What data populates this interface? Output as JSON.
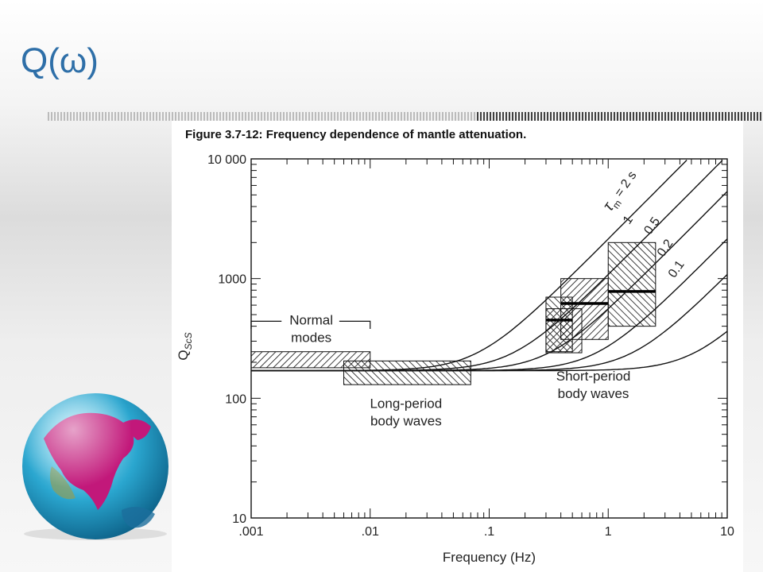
{
  "slide": {
    "title": "Q(ω)"
  },
  "figure": {
    "caption": "Figure 3.7-12: Frequency dependence of mantle attenuation."
  },
  "chart_data": {
    "type": "line",
    "title": "Figure 3.7-12: Frequency dependence of mantle attenuation.",
    "xlabel": "Frequency (Hz)",
    "ylabel": "Q_ScS",
    "xscale": "log",
    "yscale": "log",
    "xlim": [
      0.001,
      10
    ],
    "ylim": [
      10,
      10000
    ],
    "x_tick_labels": [
      ".001",
      ".01",
      ".1",
      "1",
      "10"
    ],
    "y_tick_labels": [
      "10",
      "100",
      "1000",
      "10 000"
    ],
    "grid": false,
    "Q0": 170,
    "series": [
      {
        "name": "τm = 2 s",
        "label_text": "= 2 s",
        "tau": 2.0
      },
      {
        "name": "1",
        "label_text": "1",
        "tau": 1.0
      },
      {
        "name": "0.5",
        "label_text": "0.5",
        "tau": 0.5
      },
      {
        "name": "0.2",
        "label_text": "0.2",
        "tau": 0.2
      },
      {
        "name": "0.1",
        "label_text": "0.1",
        "tau": 0.1
      }
    ],
    "ranges": [
      {
        "group": "Normal modes",
        "x": [
          0.001,
          0.01
        ],
        "y": [
          180,
          245
        ],
        "median": null,
        "hatch": "back"
      },
      {
        "group": "Long-period body waves",
        "x": [
          0.006,
          0.07
        ],
        "y": [
          130,
          205
        ],
        "median": null,
        "hatch": "fwd"
      },
      {
        "group": "Short-period body waves",
        "x": [
          0.3,
          0.5
        ],
        "y": [
          245,
          700
        ],
        "median": 450,
        "hatch": "fwd"
      },
      {
        "group": "Short-period body waves",
        "x": [
          0.3,
          0.6
        ],
        "y": [
          240,
          560
        ],
        "median": null,
        "hatch": "back"
      },
      {
        "group": "Short-period body waves",
        "x": [
          0.4,
          1.0
        ],
        "y": [
          310,
          1000
        ],
        "median": 620,
        "hatch": "back"
      },
      {
        "group": "Short-period body waves",
        "x": [
          1.0,
          2.5
        ],
        "y": [
          400,
          2000
        ],
        "median": 780,
        "hatch": "fwd"
      }
    ],
    "annotations": {
      "normal_modes_line1": "Normal",
      "normal_modes_line2": "modes",
      "long_period_line1": "Long-period",
      "long_period_line2": "body waves",
      "short_period_line1": "Short-period",
      "short_period_line2": "body waves",
      "tau_symbol": "τ",
      "tau_subscript": "m"
    }
  }
}
